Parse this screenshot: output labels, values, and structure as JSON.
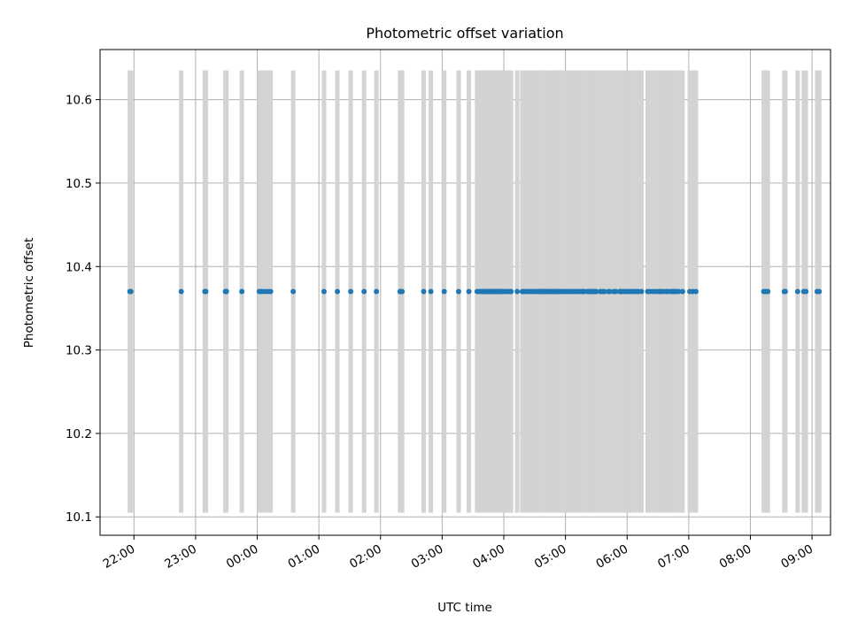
{
  "colors": {
    "marker": "#1f77b4",
    "error_bar": "#d3d3d3",
    "grid": "#b0b0b0",
    "axis": "#000000",
    "background": "#ffffff"
  },
  "chart_data": {
    "type": "scatter",
    "title": "Photometric offset variation",
    "xlabel": "UTC time",
    "ylabel": "Photometric offset",
    "grid": true,
    "x_tick_labels": [
      "22:00",
      "23:00",
      "00:00",
      "01:00",
      "02:00",
      "03:00",
      "04:00",
      "05:00",
      "06:00",
      "07:00",
      "08:00",
      "09:00"
    ],
    "x_tick_hours": [
      22,
      23,
      24,
      25,
      26,
      27,
      28,
      29,
      30,
      31,
      32,
      33
    ],
    "x_range_hours": [
      21.45,
      33.3
    ],
    "y_tick_labels": [
      "10.1",
      "10.2",
      "10.3",
      "10.4",
      "10.5",
      "10.6"
    ],
    "y_ticks": [
      10.1,
      10.2,
      10.3,
      10.4,
      10.5,
      10.6
    ],
    "ylim": [
      10.078,
      10.66
    ],
    "series": [
      {
        "x_times": [
          "21:56",
          "21:57",
          "22:46",
          "23:09",
          "23:10",
          "23:29",
          "23:30",
          "23:45",
          "24:02",
          "24:04",
          "24:07",
          "24:10",
          "24:13",
          "24:35",
          "25:05",
          "25:18",
          "25:31",
          "25:44",
          "25:56",
          "26:19",
          "26:20",
          "26:21",
          "26:42",
          "26:49",
          "27:02",
          "27:16",
          "27:26",
          "27:34",
          "27:36",
          "27:38",
          "27:40",
          "27:41",
          "27:42",
          "27:43",
          "27:44",
          "27:45",
          "27:46",
          "27:47",
          "27:48",
          "27:49",
          "27:50",
          "27:51",
          "27:52",
          "27:53",
          "27:54",
          "27:55",
          "27:56",
          "27:57",
          "27:58",
          "27:59",
          "28:01",
          "28:03",
          "28:05",
          "28:06",
          "28:07",
          "28:13",
          "28:18",
          "28:19",
          "28:21",
          "28:23",
          "28:25",
          "28:26",
          "28:28",
          "28:30",
          "28:31",
          "28:32",
          "28:34",
          "28:35",
          "28:36",
          "28:37",
          "28:38",
          "28:39",
          "28:40",
          "28:41",
          "28:43",
          "28:44",
          "28:45",
          "28:46",
          "28:48",
          "28:49",
          "28:51",
          "28:52",
          "28:53",
          "28:54",
          "28:55",
          "28:57",
          "28:59",
          "29:01",
          "29:02",
          "29:03",
          "29:05",
          "29:07",
          "29:09",
          "29:11",
          "29:12",
          "29:14",
          "29:16",
          "29:17",
          "29:18",
          "29:21",
          "29:23",
          "29:24",
          "29:26",
          "29:27",
          "29:28",
          "29:29",
          "29:30",
          "29:34",
          "29:36",
          "29:38",
          "29:42",
          "29:43",
          "29:47",
          "29:49",
          "29:53",
          "29:54",
          "29:55",
          "29:57",
          "29:59",
          "30:01",
          "30:02",
          "30:04",
          "30:06",
          "30:08",
          "30:10",
          "30:11",
          "30:14",
          "30:20",
          "30:22",
          "30:25",
          "30:28",
          "30:31",
          "30:33",
          "30:35",
          "30:38",
          "30:40",
          "30:43",
          "30:45",
          "30:46",
          "30:48",
          "30:50",
          "30:54",
          "31:01",
          "31:04",
          "31:07",
          "32:13",
          "32:15",
          "32:17",
          "32:33",
          "32:34",
          "32:46",
          "32:52",
          "32:54",
          "33:05",
          "33:07"
        ],
        "y": 10.37,
        "y_low": 10.105,
        "y_high": 10.635
      }
    ]
  }
}
